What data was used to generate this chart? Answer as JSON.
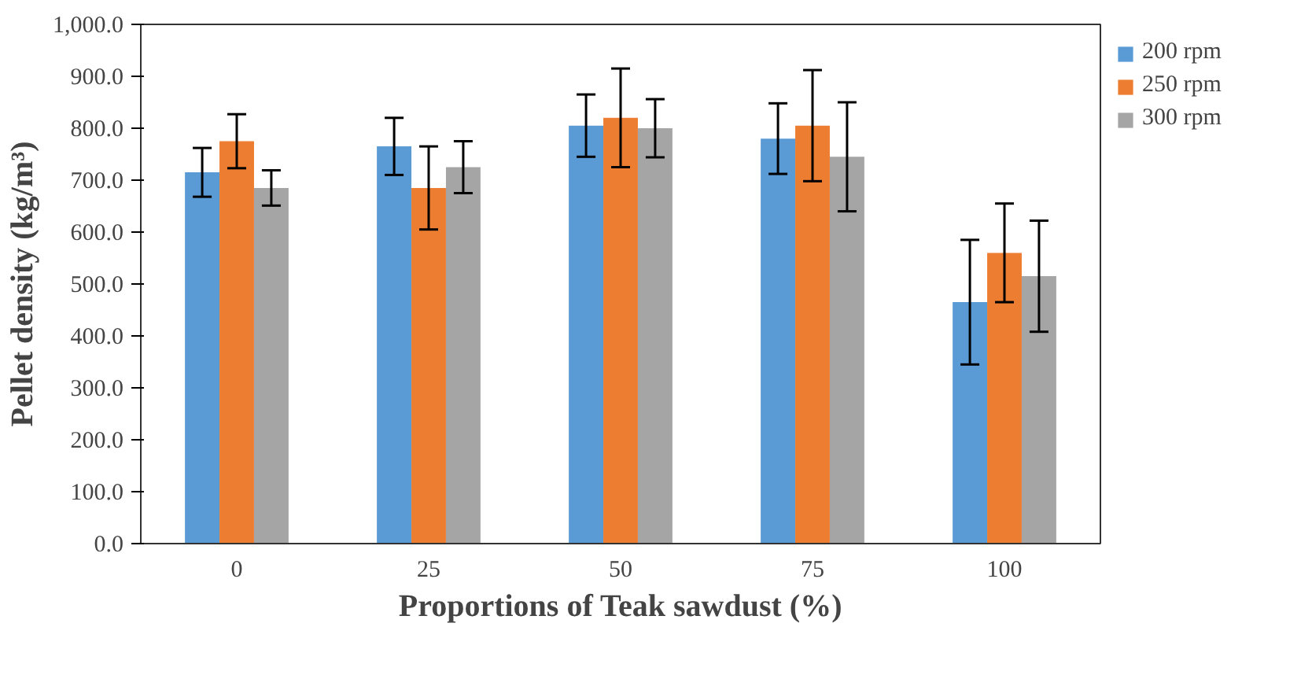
{
  "chart_data": {
    "type": "bar",
    "xlabel": "Proportions of Teak sawdust (%)",
    "ylabel": "Pellet density (kg/m³)",
    "categories": [
      "0",
      "25",
      "50",
      "75",
      "100"
    ],
    "series": [
      {
        "name": "200 rpm",
        "color": "#5b9bd5",
        "values": [
          715,
          765,
          805,
          780,
          465
        ],
        "errors": [
          47,
          55,
          60,
          68,
          120
        ]
      },
      {
        "name": "250 rpm",
        "color": "#ed7d31",
        "values": [
          775,
          685,
          820,
          805,
          560
        ],
        "errors": [
          52,
          80,
          95,
          107,
          95
        ]
      },
      {
        "name": "300 rpm",
        "color": "#a5a5a5",
        "values": [
          685,
          725,
          800,
          745,
          515
        ],
        "errors": [
          34,
          50,
          56,
          105,
          107
        ]
      }
    ],
    "ylim": [
      0,
      1000
    ],
    "yticks": [
      {
        "value": 0,
        "label": "0.0"
      },
      {
        "value": 100,
        "label": "100.0"
      },
      {
        "value": 200,
        "label": "200.0"
      },
      {
        "value": 300,
        "label": "300.0"
      },
      {
        "value": 400,
        "label": "400.0"
      },
      {
        "value": 500,
        "label": "500.0"
      },
      {
        "value": 600,
        "label": "600.0"
      },
      {
        "value": 700,
        "label": "700.0"
      },
      {
        "value": 800,
        "label": "800.0"
      },
      {
        "value": 900,
        "label": "900.0"
      },
      {
        "value": 1000,
        "label": "1,000.0"
      }
    ],
    "grid": false,
    "legend": "top right"
  }
}
